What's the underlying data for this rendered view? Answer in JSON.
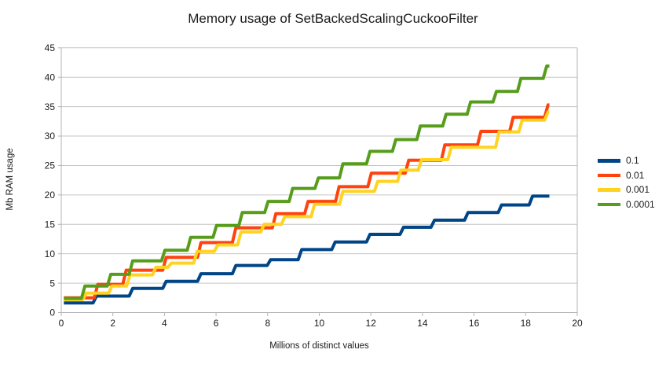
{
  "title": "Memory usage of SetBackedScalingCuckooFilter",
  "chart_data": {
    "type": "line",
    "subtype": "step",
    "title": "Memory usage of SetBackedScalingCuckooFilter",
    "xlabel": "Millions of distinct values",
    "ylabel": "Mb RAM usage",
    "xlim": [
      0,
      20
    ],
    "ylim": [
      0,
      45
    ],
    "x_ticks": [
      0,
      2,
      4,
      6,
      8,
      10,
      12,
      14,
      16,
      18,
      20
    ],
    "y_ticks": [
      0,
      5,
      10,
      15,
      20,
      25,
      30,
      35,
      40,
      45
    ],
    "grid": "horizontal",
    "legend_position": "right",
    "x_end": 18.92,
    "series": [
      {
        "name": "0.1",
        "color": "#004586",
        "points": [
          [
            0.1,
            1.65
          ],
          [
            1.3,
            2.8
          ],
          [
            2.7,
            4.1
          ],
          [
            4.0,
            5.3
          ],
          [
            5.35,
            6.6
          ],
          [
            6.7,
            8.0
          ],
          [
            8.05,
            9.0
          ],
          [
            9.25,
            10.7
          ],
          [
            10.55,
            12.0
          ],
          [
            11.9,
            13.3
          ],
          [
            13.2,
            14.5
          ],
          [
            14.4,
            15.7
          ],
          [
            15.7,
            17.0
          ],
          [
            17.0,
            18.3
          ],
          [
            18.2,
            19.8
          ]
        ]
      },
      {
        "name": "0.01",
        "color": "#FF420E",
        "points": [
          [
            0.1,
            2.5
          ],
          [
            1.35,
            4.8
          ],
          [
            2.45,
            7.2
          ],
          [
            4.0,
            9.4
          ],
          [
            5.35,
            11.9
          ],
          [
            6.7,
            14.4
          ],
          [
            8.25,
            16.8
          ],
          [
            9.5,
            18.9
          ],
          [
            10.7,
            21.4
          ],
          [
            11.95,
            23.7
          ],
          [
            13.4,
            25.9
          ],
          [
            14.8,
            28.5
          ],
          [
            16.2,
            30.8
          ],
          [
            17.45,
            33.2
          ],
          [
            18.8,
            35.3
          ]
        ]
      },
      {
        "name": "0.001",
        "color": "#FFD320",
        "points": [
          [
            0.1,
            2.2
          ],
          [
            0.9,
            3.3
          ],
          [
            1.9,
            4.5
          ],
          [
            2.6,
            6.4
          ],
          [
            3.6,
            7.7
          ],
          [
            4.2,
            8.4
          ],
          [
            5.2,
            10.4
          ],
          [
            6.0,
            11.5
          ],
          [
            6.9,
            13.7
          ],
          [
            7.8,
            15.0
          ],
          [
            8.6,
            16.3
          ],
          [
            9.75,
            18.4
          ],
          [
            10.85,
            20.6
          ],
          [
            12.2,
            22.3
          ],
          [
            13.1,
            24.2
          ],
          [
            13.9,
            26.0
          ],
          [
            15.05,
            28.1
          ],
          [
            16.9,
            30.7
          ],
          [
            17.8,
            32.7
          ],
          [
            18.8,
            34.1
          ]
        ]
      },
      {
        "name": "0.0001",
        "color": "#579D1C",
        "points": [
          [
            0.1,
            2.4
          ],
          [
            0.85,
            4.5
          ],
          [
            1.85,
            6.5
          ],
          [
            2.7,
            8.8
          ],
          [
            3.95,
            10.6
          ],
          [
            4.95,
            12.8
          ],
          [
            5.95,
            14.8
          ],
          [
            6.95,
            17.0
          ],
          [
            7.95,
            18.9
          ],
          [
            8.9,
            21.1
          ],
          [
            9.9,
            22.9
          ],
          [
            10.85,
            25.3
          ],
          [
            11.9,
            27.4
          ],
          [
            12.9,
            29.4
          ],
          [
            13.85,
            31.7
          ],
          [
            14.85,
            33.7
          ],
          [
            15.8,
            35.8
          ],
          [
            16.8,
            37.6
          ],
          [
            17.75,
            39.8
          ],
          [
            18.75,
            41.9
          ]
        ]
      }
    ],
    "legend": [
      {
        "label": "0.1",
        "color": "#004586"
      },
      {
        "label": "0.01",
        "color": "#FF420E"
      },
      {
        "label": "0.001",
        "color": "#FFD320"
      },
      {
        "label": "0.0001",
        "color": "#579D1C"
      }
    ],
    "style": {
      "grid_color": "#c6c6c6",
      "axis_color": "#b3b3b3",
      "line_width": 4
    }
  }
}
